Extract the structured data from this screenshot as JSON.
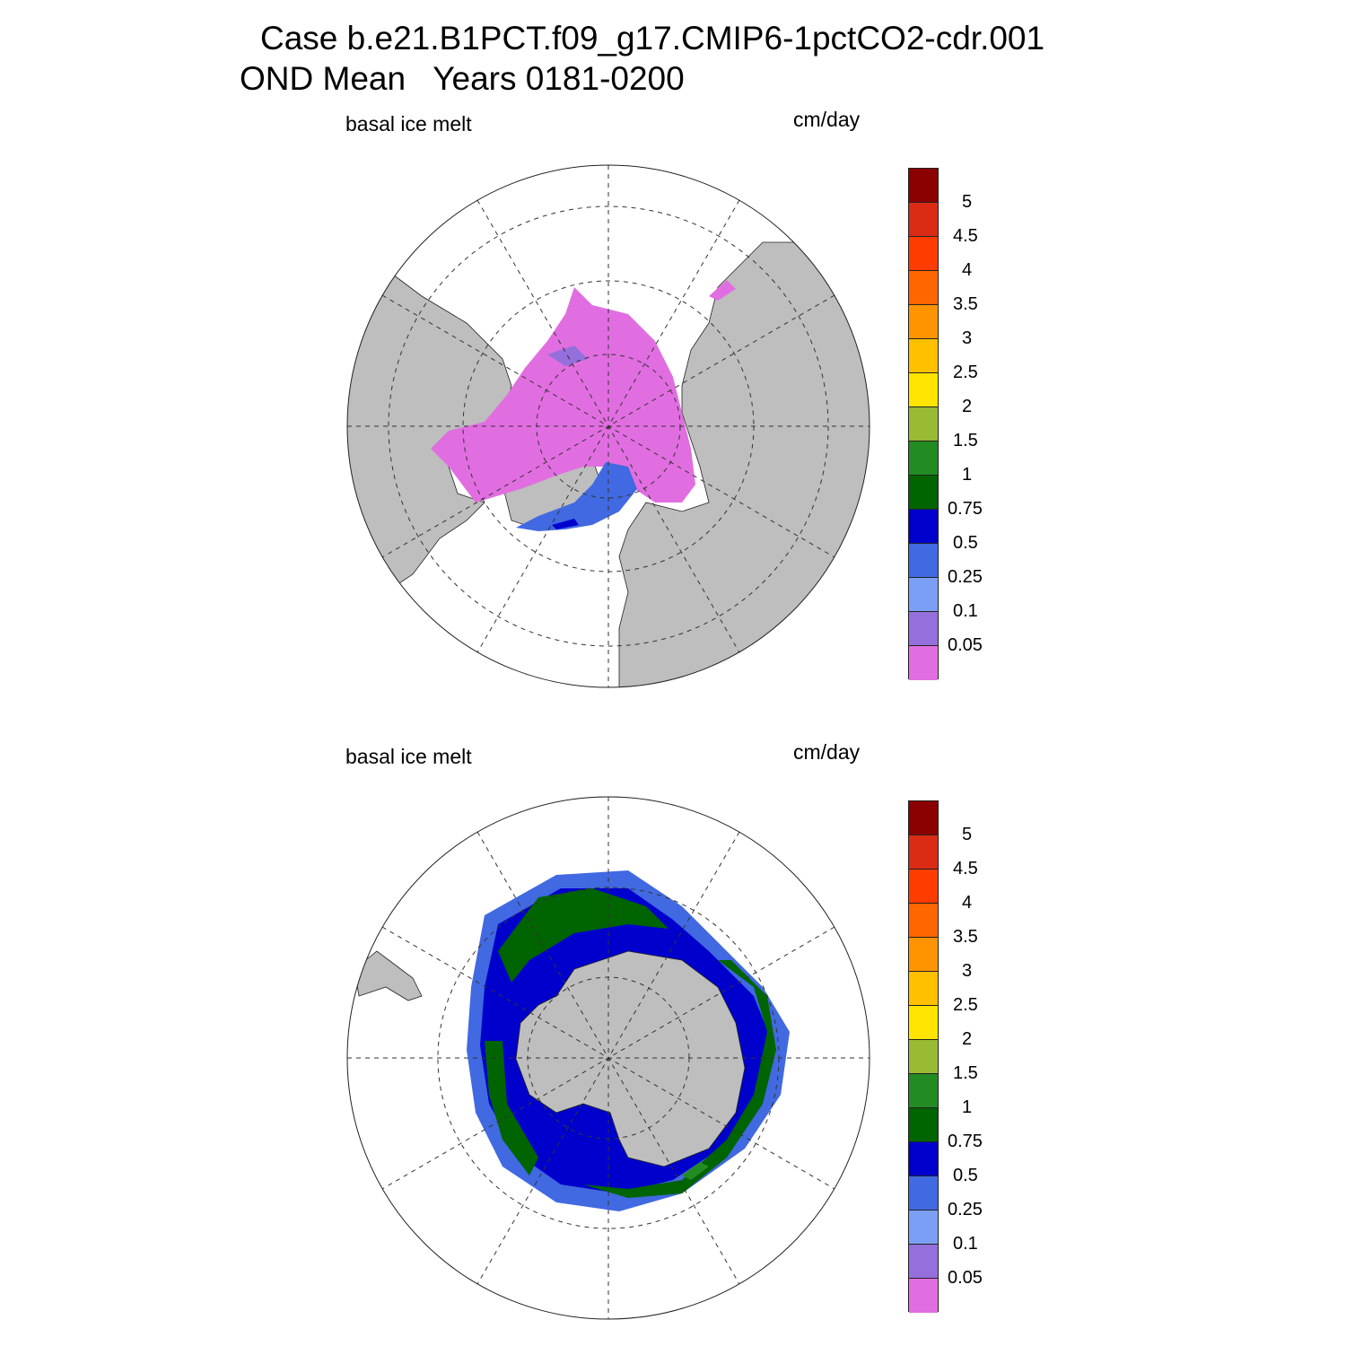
{
  "title": {
    "line1": "Case b.e21.B1PCT.f09_g17.CMIP6-1pctCO2-cdr.001",
    "line2": "OND Mean   Years 0181-0200"
  },
  "panels": [
    {
      "id": "north",
      "variable": "basal ice melt",
      "units": "cm/day",
      "hemisphere": "Arctic"
    },
    {
      "id": "south",
      "variable": "basal ice melt",
      "units": "cm/day",
      "hemisphere": "Antarctic"
    }
  ],
  "colorbar": {
    "levels": [
      "5",
      "4.5",
      "4",
      "3.5",
      "3",
      "2.5",
      "2",
      "1.5",
      "1",
      "0.75",
      "0.5",
      "0.25",
      "0.1",
      "0.05"
    ],
    "colors": [
      "#8b0000",
      "#dc2b14",
      "#ff3c00",
      "#ff6600",
      "#ff9400",
      "#ffc000",
      "#ffe400",
      "#99bb33",
      "#228b22",
      "#006400",
      "#0000cd",
      "#4169e1",
      "#7b9ff5",
      "#9370db",
      "#e16ee0"
    ]
  },
  "map_colors": {
    "land": "#bebebe",
    "ocean": "#ffffff",
    "grid": "#222222"
  }
}
